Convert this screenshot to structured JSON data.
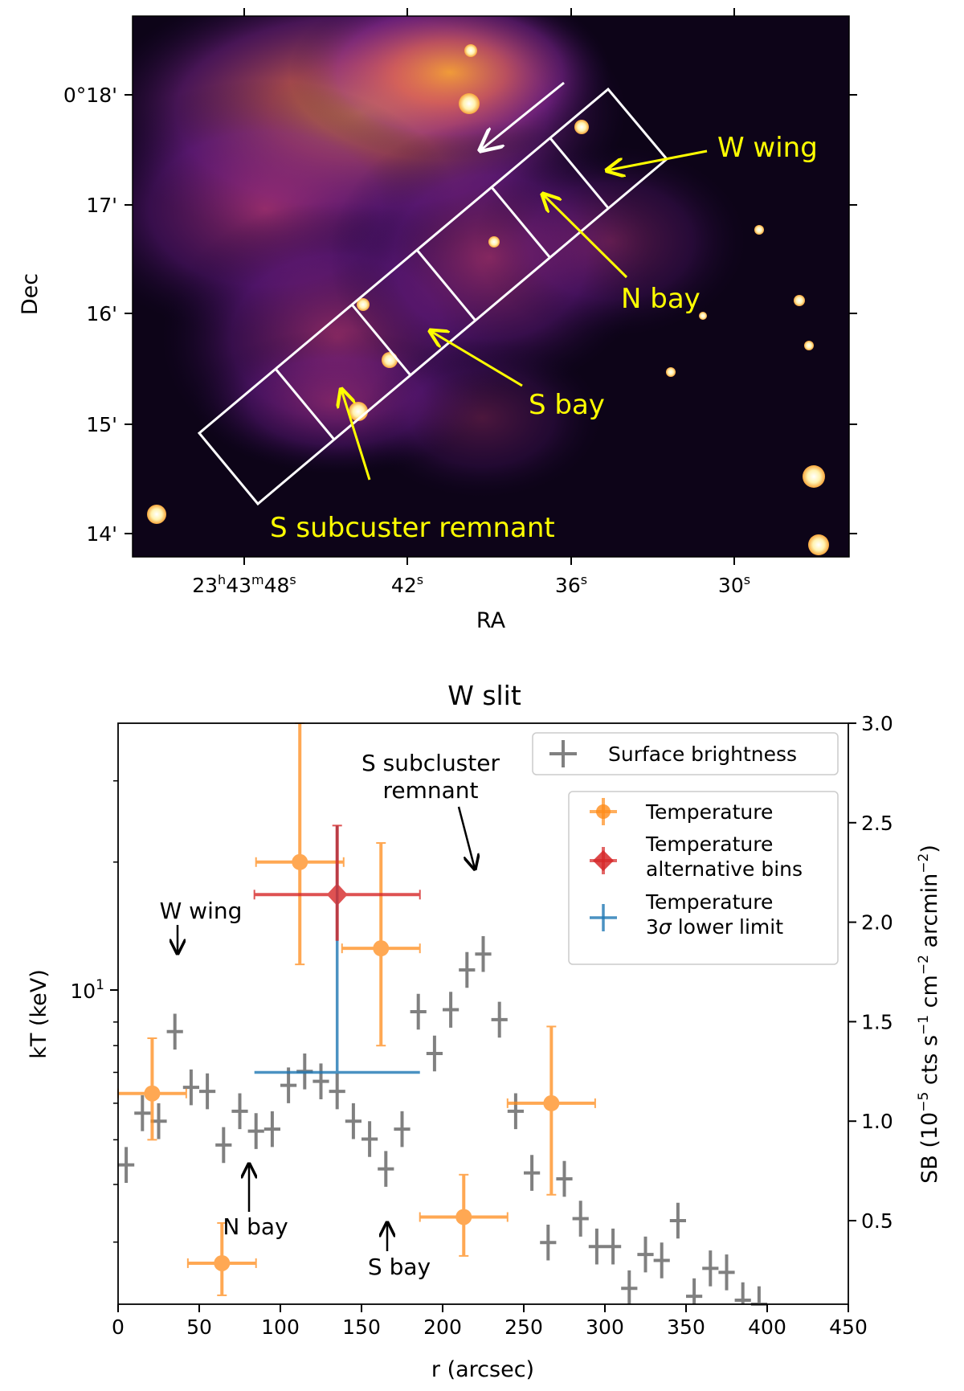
{
  "chart_data": [
    {
      "type": "image",
      "panel": "X-ray image of the W slit region",
      "xlabel": "RA",
      "ylabel": "Dec",
      "ra_ticks": [
        {
          "h": "23",
          "m": "43",
          "s": "48"
        },
        {
          "s": "42"
        },
        {
          "s": "36"
        },
        {
          "s": "30"
        }
      ],
      "dec_ticks": [
        "0°18'",
        "17'",
        "16'",
        "15'",
        "14'"
      ],
      "annotations": [
        "W wing",
        "N bay",
        "S bay",
        "S subcuster remnant"
      ]
    },
    {
      "type": "scatter",
      "title": "W slit",
      "xlabel": "r (arcsec)",
      "ylabel": "kT (keV)",
      "y2label_main": "SB (10",
      "y2label_exp1": "−5",
      "y2label_mid": " cts s",
      "y2label_exp2": "−1",
      "y2label_mid2": " cm",
      "y2label_exp3": "−2",
      "y2label_mid3": " arcmin",
      "y2label_exp4": "−2",
      "y2label_end": ")",
      "xlim": [
        0,
        450
      ],
      "ylim_log": [
        2.2,
        40
      ],
      "y2lim": [
        0.08,
        3.0
      ],
      "xticks": [
        "0",
        "50",
        "100",
        "150",
        "200",
        "250",
        "300",
        "350",
        "400",
        "450"
      ],
      "ytick_base": "10",
      "ytick_exp": "1",
      "y2ticks": [
        "0.5",
        "1.0",
        "1.5",
        "2.0",
        "2.5",
        "3.0"
      ],
      "temperature": [
        {
          "x": 21,
          "xerr": 21,
          "y": 6.3,
          "ylo": 5.0,
          "yhi": 8.3
        },
        {
          "x": 64,
          "xerr": 21,
          "y": 2.7,
          "ylo": 2.3,
          "yhi": 3.3
        },
        {
          "x": 112,
          "xerr": 27,
          "y": 20.0,
          "ylo": 12.0,
          "yhi": 40.0
        },
        {
          "x": 162,
          "xerr": 24,
          "y": 13.0,
          "ylo": 8.0,
          "yhi": 22.0
        },
        {
          "x": 213,
          "xerr": 27,
          "y": 3.4,
          "ylo": 2.8,
          "yhi": 4.2
        },
        {
          "x": 267,
          "xerr": 27,
          "y": 6.0,
          "ylo": 3.8,
          "yhi": 8.8
        }
      ],
      "temperature_alt": [
        {
          "x": 135,
          "xerr": 51,
          "y": 17.0,
          "ylo": 13.5,
          "yhi": 24.0
        }
      ],
      "temperature_lower_limit": [
        {
          "x": 135,
          "xerr": 51,
          "y": 7.0
        }
      ],
      "surface_brightness": [
        {
          "x": 5,
          "y": 0.78,
          "e": 0.09
        },
        {
          "x": 15,
          "y": 1.04,
          "e": 0.09
        },
        {
          "x": 25,
          "y": 1.0,
          "e": 0.09
        },
        {
          "x": 35,
          "y": 1.45,
          "e": 0.09
        },
        {
          "x": 45,
          "y": 1.17,
          "e": 0.09
        },
        {
          "x": 55,
          "y": 1.15,
          "e": 0.09
        },
        {
          "x": 65,
          "y": 0.88,
          "e": 0.09
        },
        {
          "x": 75,
          "y": 1.05,
          "e": 0.09
        },
        {
          "x": 85,
          "y": 0.95,
          "e": 0.09
        },
        {
          "x": 95,
          "y": 0.96,
          "e": 0.09
        },
        {
          "x": 105,
          "y": 1.18,
          "e": 0.09
        },
        {
          "x": 115,
          "y": 1.25,
          "e": 0.09
        },
        {
          "x": 125,
          "y": 1.2,
          "e": 0.09
        },
        {
          "x": 135,
          "y": 1.15,
          "e": 0.09
        },
        {
          "x": 145,
          "y": 1.0,
          "e": 0.09
        },
        {
          "x": 155,
          "y": 0.91,
          "e": 0.09
        },
        {
          "x": 165,
          "y": 0.76,
          "e": 0.09
        },
        {
          "x": 175,
          "y": 0.96,
          "e": 0.09
        },
        {
          "x": 185,
          "y": 1.55,
          "e": 0.09
        },
        {
          "x": 195,
          "y": 1.34,
          "e": 0.09
        },
        {
          "x": 205,
          "y": 1.56,
          "e": 0.09
        },
        {
          "x": 215,
          "y": 1.76,
          "e": 0.09
        },
        {
          "x": 225,
          "y": 1.84,
          "e": 0.09
        },
        {
          "x": 235,
          "y": 1.51,
          "e": 0.09
        },
        {
          "x": 245,
          "y": 1.05,
          "e": 0.09
        },
        {
          "x": 255,
          "y": 0.74,
          "e": 0.09
        },
        {
          "x": 265,
          "y": 0.39,
          "e": 0.09
        },
        {
          "x": 275,
          "y": 0.71,
          "e": 0.09
        },
        {
          "x": 285,
          "y": 0.51,
          "e": 0.09
        },
        {
          "x": 295,
          "y": 0.37,
          "e": 0.09
        },
        {
          "x": 305,
          "y": 0.37,
          "e": 0.09
        },
        {
          "x": 315,
          "y": 0.16,
          "e": 0.09
        },
        {
          "x": 325,
          "y": 0.33,
          "e": 0.09
        },
        {
          "x": 335,
          "y": 0.3,
          "e": 0.09
        },
        {
          "x": 345,
          "y": 0.5,
          "e": 0.09
        },
        {
          "x": 355,
          "y": 0.12,
          "e": 0.09
        },
        {
          "x": 365,
          "y": 0.26,
          "e": 0.09
        },
        {
          "x": 375,
          "y": 0.24,
          "e": 0.09
        },
        {
          "x": 385,
          "y": 0.1,
          "e": 0.09
        },
        {
          "x": 395,
          "y": 0.08,
          "e": 0.09
        }
      ],
      "annotations": [
        "W wing",
        "N bay",
        "S bay"
      ],
      "annotation_remnant": [
        "S subcluster",
        "remnant"
      ],
      "legend_sb": "Surface brightness",
      "legend_temp": [
        "Temperature"
      ],
      "legend_alt": [
        "Temperature",
        "alternative bins"
      ],
      "legend_limit_line1": "Temperature",
      "legend_limit_line2a": "3",
      "legend_limit_line2b": "σ",
      "legend_limit_line2c": " lower limit",
      "colors": {
        "temperature": "#ff8c1a",
        "alt": "#d62728",
        "limit": "#1f77b4",
        "sb": "#808080",
        "annot": "#ffff00"
      }
    }
  ]
}
